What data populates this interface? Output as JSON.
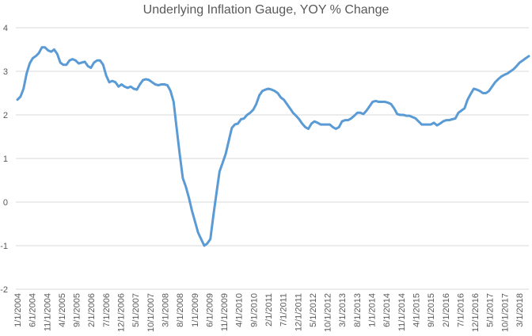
{
  "chart_data": {
    "type": "line",
    "title": "Underlying Inflation Gauge, YOY % Change",
    "xlabel": "",
    "ylabel": "",
    "ylim": [
      -2,
      4
    ],
    "yticks": [
      "4",
      "3",
      "2",
      "1",
      "0",
      "-1",
      "-2"
    ],
    "grid": true,
    "legend": "none",
    "color": "#5b9bd5",
    "xtick_labels": [
      "1/1/2004",
      "6/1/2004",
      "11/1/2004",
      "4/1/2005",
      "9/1/2005",
      "2/1/2006",
      "7/1/2006",
      "12/1/2006",
      "5/1/2007",
      "10/1/2007",
      "3/1/2008",
      "8/1/2008",
      "1/1/2009",
      "6/1/2009",
      "11/1/2009",
      "4/1/2010",
      "9/1/2010",
      "2/1/2011",
      "7/1/2011",
      "12/1/2011",
      "5/1/2012",
      "10/1/2012",
      "3/1/2013",
      "8/1/2013",
      "1/1/2014",
      "6/1/2014",
      "11/1/2014",
      "4/1/2015",
      "9/1/2015",
      "2/1/2016",
      "7/1/2016",
      "12/1/2016",
      "5/1/2017",
      "10/1/2017",
      "3/1/2018"
    ],
    "series": [
      {
        "values": [
          2.35,
          2.42,
          2.6,
          2.95,
          3.18,
          3.3,
          3.35,
          3.42,
          3.55,
          3.55,
          3.48,
          3.45,
          3.5,
          3.4,
          3.2,
          3.15,
          3.15,
          3.25,
          3.28,
          3.25,
          3.18,
          3.2,
          3.22,
          3.12,
          3.08,
          3.2,
          3.25,
          3.25,
          3.15,
          2.9,
          2.75,
          2.78,
          2.75,
          2.65,
          2.7,
          2.65,
          2.62,
          2.65,
          2.6,
          2.58,
          2.7,
          2.8,
          2.82,
          2.8,
          2.75,
          2.7,
          2.68,
          2.7,
          2.7,
          2.68,
          2.55,
          2.3,
          1.7,
          1.1,
          0.55,
          0.35,
          0.1,
          -0.2,
          -0.45,
          -0.7,
          -0.85,
          -1.0,
          -0.95,
          -0.85,
          -0.3,
          0.2,
          0.7,
          0.9,
          1.1,
          1.4,
          1.7,
          1.78,
          1.8,
          1.9,
          1.92,
          2.0,
          2.05,
          2.12,
          2.25,
          2.45,
          2.55,
          2.58,
          2.6,
          2.58,
          2.55,
          2.5,
          2.4,
          2.35,
          2.25,
          2.15,
          2.05,
          1.98,
          1.9,
          1.8,
          1.72,
          1.68,
          1.8,
          1.85,
          1.82,
          1.78,
          1.78,
          1.78,
          1.78,
          1.72,
          1.68,
          1.72,
          1.85,
          1.88,
          1.88,
          1.92,
          1.98,
          2.05,
          2.05,
          2.02,
          2.1,
          2.2,
          2.3,
          2.32,
          2.3,
          2.3,
          2.3,
          2.28,
          2.25,
          2.15,
          2.02,
          2.0,
          2.0,
          1.98,
          1.98,
          1.95,
          1.92,
          1.85,
          1.78,
          1.78,
          1.78,
          1.78,
          1.82,
          1.76,
          1.8,
          1.85,
          1.88,
          1.88,
          1.9,
          1.92,
          2.05,
          2.1,
          2.15,
          2.35,
          2.48,
          2.6,
          2.58,
          2.55,
          2.5,
          2.5,
          2.55,
          2.65,
          2.75,
          2.82,
          2.88,
          2.92,
          2.95,
          3.0,
          3.05,
          3.12,
          3.2,
          3.25,
          3.3,
          3.35
        ]
      }
    ]
  }
}
